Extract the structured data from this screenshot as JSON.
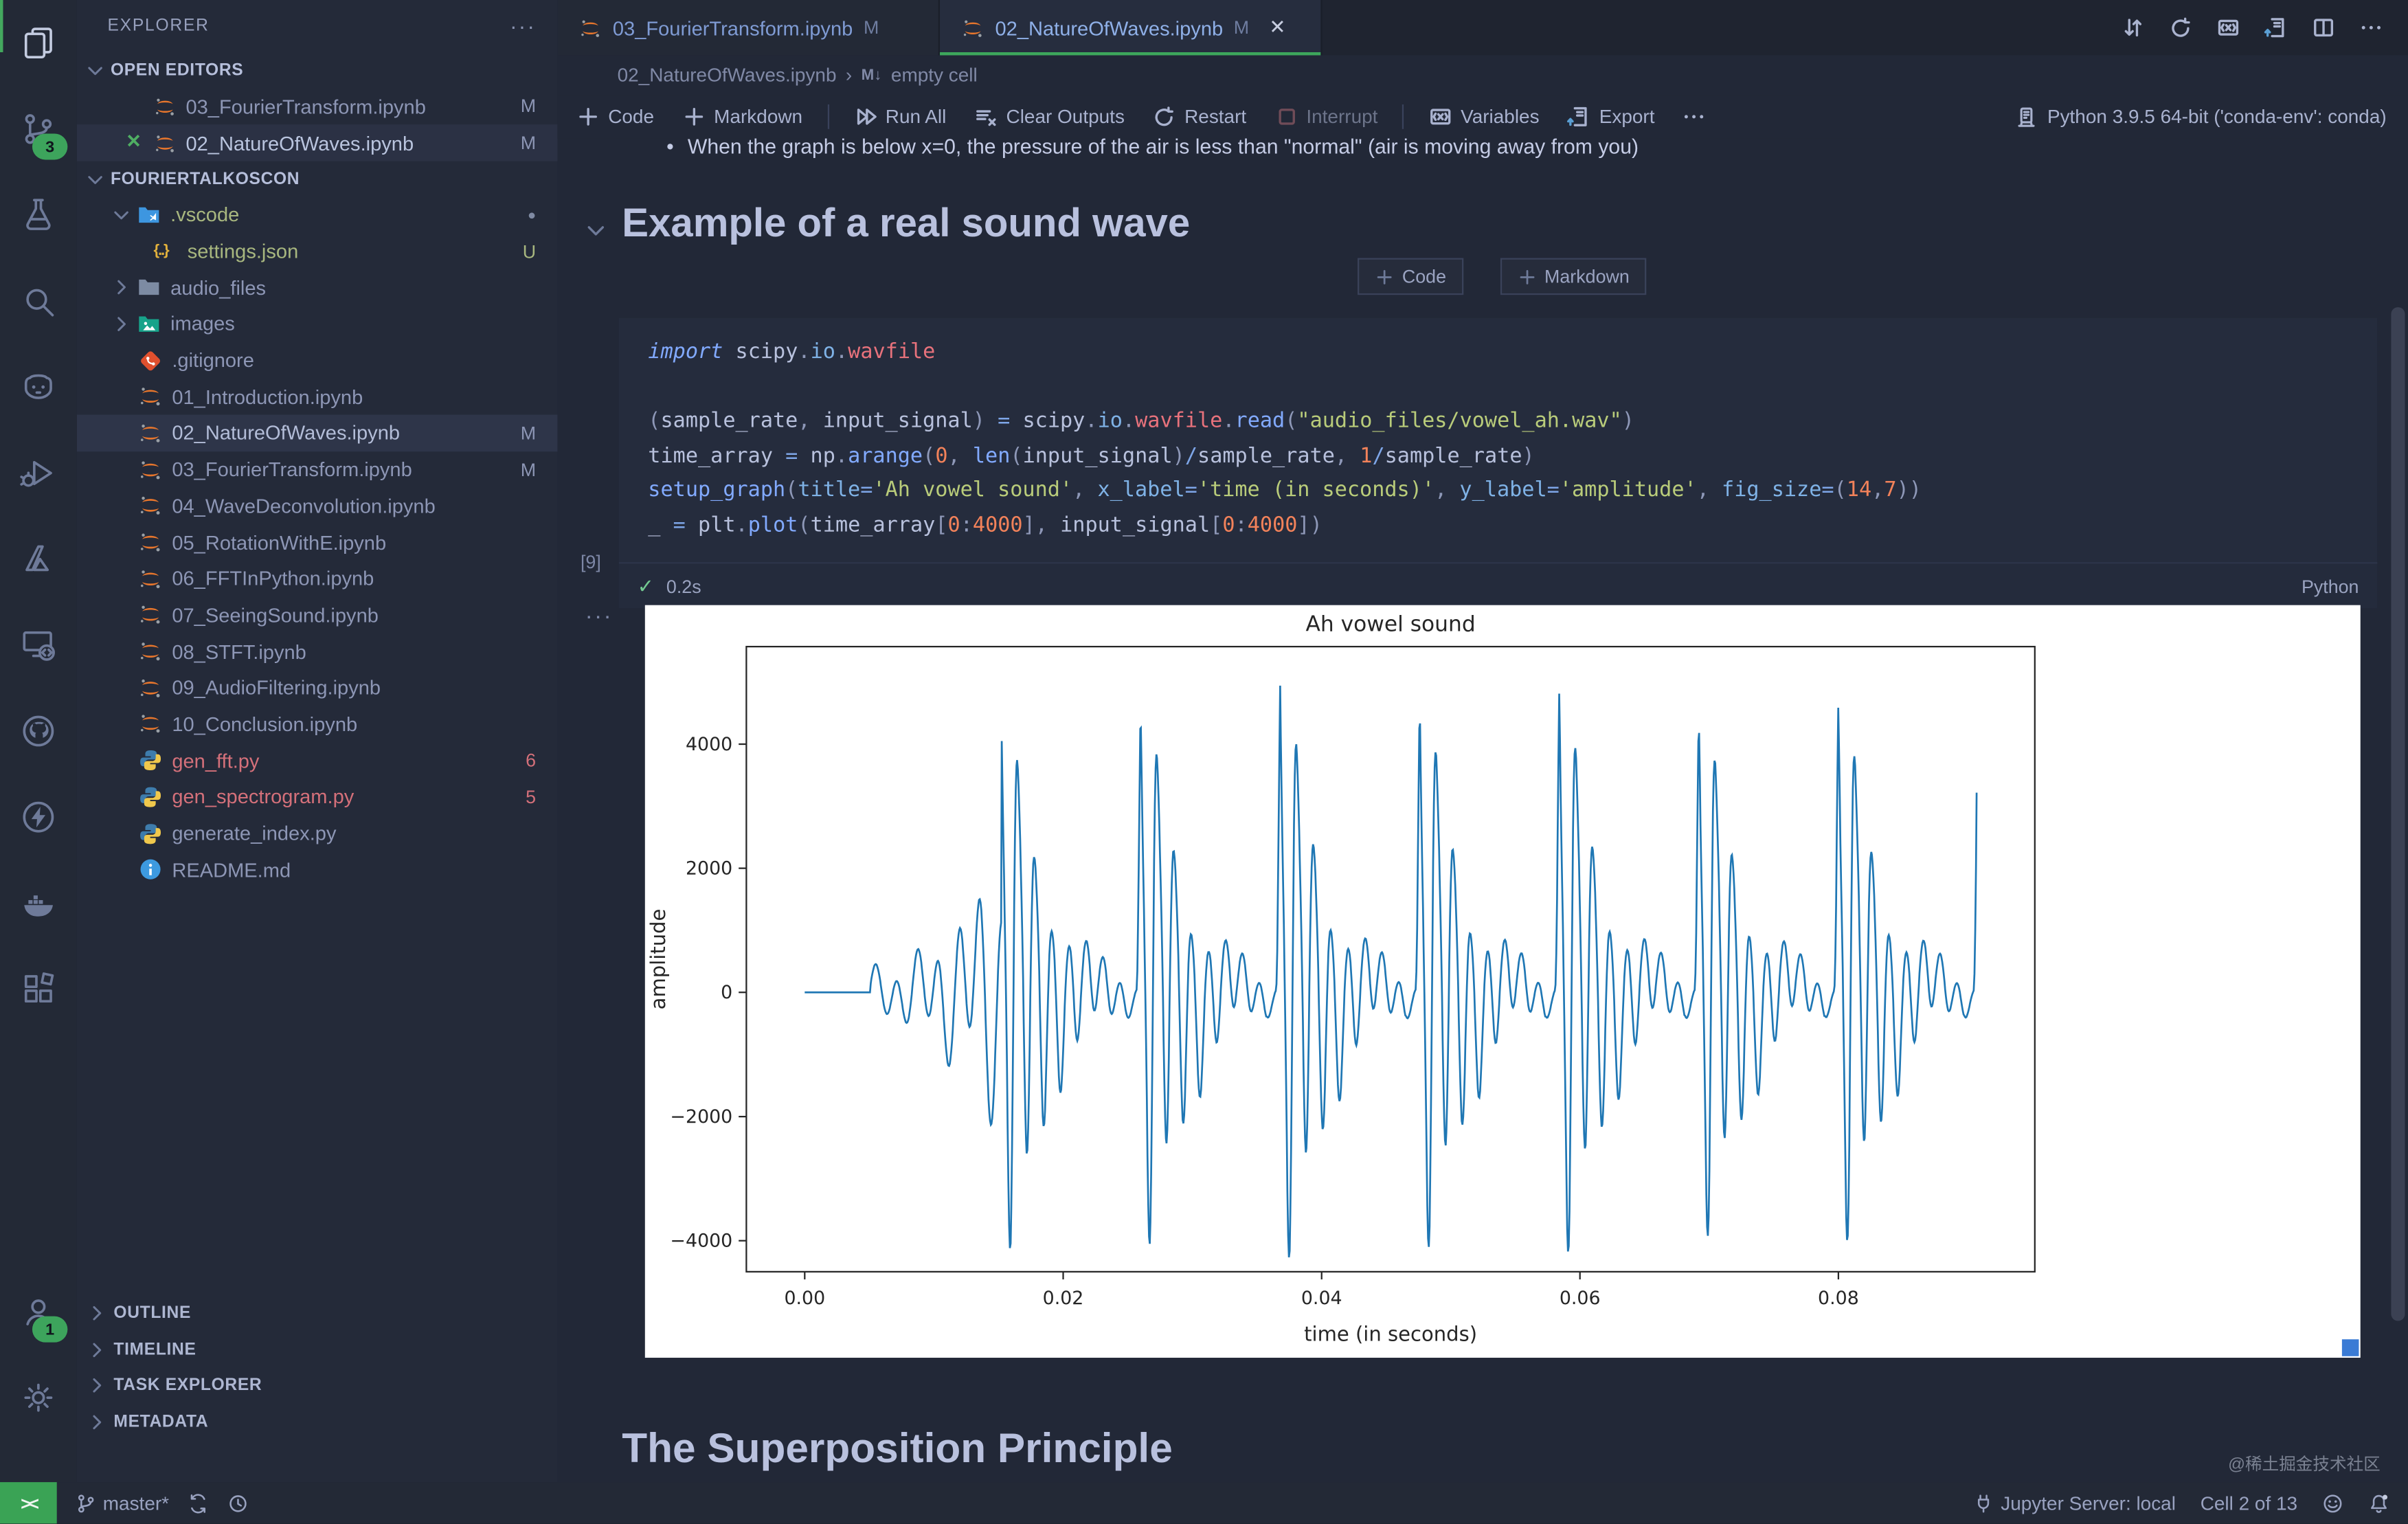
{
  "watermark": "@稀土掘金技术社区",
  "activity_bar": {
    "items": [
      {
        "name": "explorer",
        "icon": "files",
        "active": true
      },
      {
        "name": "source-control",
        "icon": "scm",
        "badge": "3"
      },
      {
        "name": "testing",
        "icon": "beaker"
      },
      {
        "name": "search",
        "icon": "search"
      },
      {
        "name": "copilot",
        "icon": "copilot"
      },
      {
        "name": "run-and-debug",
        "icon": "debug"
      },
      {
        "name": "azure",
        "icon": "azure"
      },
      {
        "name": "remote-explorer",
        "icon": "remote-x"
      },
      {
        "name": "github",
        "icon": "github"
      },
      {
        "name": "thunder-client",
        "icon": "thunder"
      },
      {
        "name": "docker",
        "icon": "docker"
      },
      {
        "name": "extensions",
        "icon": "extensions"
      }
    ],
    "bottom": [
      {
        "name": "accounts",
        "icon": "accounts",
        "badge": "1"
      },
      {
        "name": "settings",
        "icon": "gear"
      }
    ]
  },
  "sidebar": {
    "title": "EXPLORER",
    "more": "···",
    "open_editors_label": "OPEN EDITORS",
    "open_editors": [
      {
        "label": "03_FourierTransform.ipynb",
        "icon": "notebook",
        "badge": "M"
      },
      {
        "label": "02_NatureOfWaves.ipynb",
        "icon": "notebook",
        "badge": "M",
        "active": true,
        "close": "✕"
      }
    ],
    "workspace_label": "FOURIERTALKOSCON",
    "workspace": {
      "items": [
        {
          "label": ".vscode",
          "icon": "folder-vscode",
          "chev": "down",
          "color": "green",
          "badge": "●",
          "badge_color": "dot"
        },
        {
          "label": "settings.json",
          "icon": "json",
          "indent": 2,
          "color": "green",
          "badge": "U",
          "badge_color": "green"
        },
        {
          "label": "audio_files",
          "icon": "folder",
          "chev": "right"
        },
        {
          "label": "images",
          "icon": "folder-images",
          "chev": "right"
        },
        {
          "label": ".gitignore",
          "icon": "git"
        },
        {
          "label": "01_Introduction.ipynb",
          "icon": "notebook"
        },
        {
          "label": "02_NatureOfWaves.ipynb",
          "icon": "notebook",
          "badge": "M",
          "selected": true
        },
        {
          "label": "03_FourierTransform.ipynb",
          "icon": "notebook",
          "badge": "M"
        },
        {
          "label": "04_WaveDeconvolution.ipynb",
          "icon": "notebook"
        },
        {
          "label": "05_RotationWithE.ipynb",
          "icon": "notebook"
        },
        {
          "label": "06_FFTInPython.ipynb",
          "icon": "notebook"
        },
        {
          "label": "07_SeeingSound.ipynb",
          "icon": "notebook"
        },
        {
          "label": "08_STFT.ipynb",
          "icon": "notebook"
        },
        {
          "label": "09_AudioFiltering.ipynb",
          "icon": "notebook"
        },
        {
          "label": "10_Conclusion.ipynb",
          "icon": "notebook"
        },
        {
          "label": "gen_fft.py",
          "icon": "python",
          "color": "red",
          "badge": "6",
          "badge_color": "red"
        },
        {
          "label": "gen_spectrogram.py",
          "icon": "python",
          "color": "red",
          "badge": "5",
          "badge_color": "red"
        },
        {
          "label": "generate_index.py",
          "icon": "python"
        },
        {
          "label": "README.md",
          "icon": "info"
        }
      ]
    },
    "bottom_sections": [
      "OUTLINE",
      "TIMELINE",
      "TASK EXPLORER",
      "METADATA"
    ]
  },
  "tabs": [
    {
      "label": "03_FourierTransform.ipynb",
      "badge": "M",
      "active": false
    },
    {
      "label": "02_NatureOfWaves.ipynb",
      "badge": "M",
      "active": true,
      "close": "✕"
    }
  ],
  "editor_actions": [
    "swap",
    "restart-view",
    "variables-view",
    "export-view",
    "split-editor",
    "more-actions"
  ],
  "breadcrumb": {
    "file": "02_NatureOfWaves.ipynb",
    "separator": "›",
    "cell_icon": "M↓",
    "cell": "empty cell"
  },
  "toolbar": {
    "items": [
      {
        "name": "add-code",
        "icon": "plus",
        "label": "Code"
      },
      {
        "name": "add-markdown",
        "icon": "plus",
        "label": "Markdown"
      },
      {
        "sep": true
      },
      {
        "name": "run-all",
        "icon": "run-all",
        "label": "Run All"
      },
      {
        "name": "clear-outputs",
        "icon": "clear",
        "label": "Clear Outputs"
      },
      {
        "name": "restart",
        "icon": "restart",
        "label": "Restart"
      },
      {
        "name": "interrupt",
        "icon": "interrupt",
        "label": "Interrupt",
        "dim": true
      },
      {
        "sep": true
      },
      {
        "name": "variables",
        "icon": "variables",
        "label": "Variables"
      },
      {
        "name": "export",
        "icon": "export",
        "label": "Export"
      },
      {
        "name": "more",
        "icon": "more",
        "label": ""
      }
    ]
  },
  "kernel": {
    "label": "Python 3.9.5 64-bit ('conda-env': conda)"
  },
  "notebook": {
    "bullet_text": "When the graph is below x=0, the pressure of the air is less than \"normal\" (air is moving away from you)",
    "section_heading": "Example of a real sound wave",
    "insert_buttons": [
      {
        "label": "Code"
      },
      {
        "label": "Markdown"
      }
    ],
    "cell": {
      "exec_count": "[9]",
      "duration": "0.2s",
      "language": "Python",
      "cell_menu": "···",
      "code_lines": [
        [
          [
            "kw",
            "import"
          ],
          [
            "pl",
            " scipy"
          ],
          [
            "pu",
            "."
          ],
          [
            "pr",
            "io"
          ],
          [
            "pu",
            "."
          ],
          [
            "md",
            "wavfile"
          ]
        ],
        [],
        [
          [
            "pu",
            "("
          ],
          [
            "pl",
            "sample_rate"
          ],
          [
            "pu",
            ", "
          ],
          [
            "pl",
            "input_signal"
          ],
          [
            "pu",
            ") "
          ],
          [
            "op",
            "="
          ],
          [
            "pl",
            " scipy"
          ],
          [
            "pu",
            "."
          ],
          [
            "pr",
            "io"
          ],
          [
            "pu",
            "."
          ],
          [
            "md",
            "wavfile"
          ],
          [
            "pu",
            "."
          ],
          [
            "fn",
            "read"
          ],
          [
            "pu",
            "("
          ],
          [
            "st",
            "\"audio_files/vowel_ah.wav\""
          ],
          [
            "pu",
            ")"
          ]
        ],
        [
          [
            "pl",
            "time_array "
          ],
          [
            "op",
            "="
          ],
          [
            "pl",
            " np"
          ],
          [
            "pu",
            "."
          ],
          [
            "fn",
            "arange"
          ],
          [
            "pu",
            "("
          ],
          [
            "nu",
            "0"
          ],
          [
            "pu",
            ", "
          ],
          [
            "fn",
            "len"
          ],
          [
            "pu",
            "("
          ],
          [
            "pl",
            "input_signal"
          ],
          [
            "pu",
            ")"
          ],
          [
            "op",
            "/"
          ],
          [
            "pl",
            "sample_rate"
          ],
          [
            "pu",
            ", "
          ],
          [
            "nu",
            "1"
          ],
          [
            "op",
            "/"
          ],
          [
            "pl",
            "sample_rate"
          ],
          [
            "pu",
            ")"
          ]
        ],
        [
          [
            "fn",
            "setup_graph"
          ],
          [
            "pu",
            "("
          ],
          [
            "kw2",
            "title"
          ],
          [
            "op",
            "="
          ],
          [
            "st",
            "'Ah vowel sound'"
          ],
          [
            "pu",
            ", "
          ],
          [
            "kw2",
            "x_label"
          ],
          [
            "op",
            "="
          ],
          [
            "st",
            "'time (in seconds)'"
          ],
          [
            "pu",
            ", "
          ],
          [
            "kw2",
            "y_label"
          ],
          [
            "op",
            "="
          ],
          [
            "st",
            "'amplitude'"
          ],
          [
            "pu",
            ", "
          ],
          [
            "kw2",
            "fig_size"
          ],
          [
            "op",
            "="
          ],
          [
            "pu",
            "("
          ],
          [
            "nu",
            "14"
          ],
          [
            "pu",
            ","
          ],
          [
            "nu",
            "7"
          ],
          [
            "pu",
            "))"
          ]
        ],
        [
          [
            "pl",
            "_ "
          ],
          [
            "op",
            "="
          ],
          [
            "pl",
            " plt"
          ],
          [
            "pu",
            "."
          ],
          [
            "fn",
            "plot"
          ],
          [
            "pu",
            "("
          ],
          [
            "pl",
            "time_array"
          ],
          [
            "pu",
            "["
          ],
          [
            "nu",
            "0"
          ],
          [
            "pu",
            ":"
          ],
          [
            "nu",
            "4000"
          ],
          [
            "pu",
            "], "
          ],
          [
            "pl",
            "input_signal"
          ],
          [
            "pu",
            "["
          ],
          [
            "nu",
            "0"
          ],
          [
            "pu",
            ":"
          ],
          [
            "nu",
            "4000"
          ],
          [
            "pu",
            "])"
          ]
        ]
      ]
    },
    "bottom_heading": "The Superposition Principle"
  },
  "chart_data": {
    "type": "line",
    "title": "Ah vowel sound",
    "xlabel": "time (in seconds)",
    "ylabel": "amplitude",
    "xlim": [
      -0.00452,
      0.0952
    ],
    "ylim": [
      -4500,
      5570
    ],
    "xticks": [
      0.0,
      0.02,
      0.04,
      0.06,
      0.08
    ],
    "xtick_labels": [
      "0.00",
      "0.02",
      "0.04",
      "0.06",
      "0.08"
    ],
    "yticks": [
      -4000,
      -2000,
      0,
      2000,
      4000
    ],
    "ytick_labels": [
      "−4000",
      "−2000",
      "0",
      "2000",
      "4000"
    ],
    "grid": false,
    "legend": null,
    "line_color": "#1f77b4",
    "series_desc": "First 4000 samples (0–0.0907 s) of the 'ah' vowel recording: flat at 0 until ~5 ms, low-amplitude onset ripple to ~±1700, then glottal pulses every ~10.8 ms with sharp peaks near +5000 and dips near −4300, ringing ~760 Hz between pulses",
    "waveform": {
      "x_start": 0,
      "x_end": 0.0907,
      "samples": 1600,
      "silence_until": 0.0051,
      "onset_end": 0.0152,
      "onset_freq_hz": 620,
      "onset_peak": 1700,
      "pulse_period": 0.0108,
      "pulse_count": 8,
      "pulse_peaks": [
        5000,
        4900,
        5150,
        4950,
        5050,
        4750,
        4850,
        5200
      ],
      "ring_freq_hz": 760,
      "ring2_freq_hz": 1560,
      "decay_s": 0.0032,
      "sub_osc_amp": 620,
      "sub_osc_freq_hz": 175
    }
  },
  "status_bar": {
    "remote_label": "><",
    "left": [
      {
        "name": "git-branch",
        "icon": "branch",
        "label": "master*"
      },
      {
        "name": "sync",
        "icon": "sync",
        "label": ""
      },
      {
        "name": "timeline-history",
        "icon": "history",
        "label": ""
      }
    ],
    "right": [
      {
        "name": "jupyter-server",
        "icon": "plug",
        "label": "Jupyter Server: local"
      },
      {
        "name": "cell-indicator",
        "icon": "",
        "label": "Cell 2 of 13"
      },
      {
        "name": "feedback",
        "icon": "smiley",
        "label": ""
      },
      {
        "name": "notifications",
        "icon": "bell",
        "label": ""
      }
    ]
  }
}
